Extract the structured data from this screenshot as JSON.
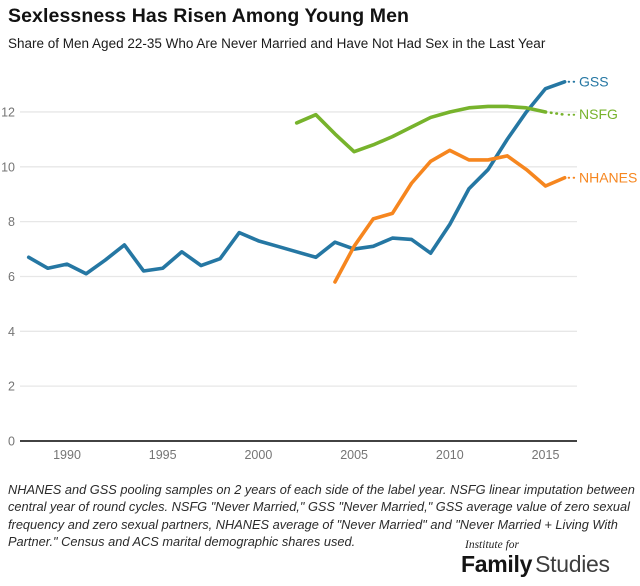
{
  "header": {
    "title": "Sexlessness Has Risen Among Young Men",
    "subtitle": "Share of Men Aged 22-35 Who Are Never Married and Have Not Had Sex in the Last Year"
  },
  "footnote": "NHANES and GSS pooling samples on 2 years of each side of the label year. NSFG linear imputation between central year of round cycles. NSFG \"Never Married,\" GSS \"Never Married,\" GSS average value of zero sexual frequency and zero sexual partners, NHANES average of \"Never Married\" and \"Never Married + Living With Partner.\" Census and ACS marital demographic shares used.",
  "logo": {
    "prefix": "Institute for",
    "name_bold": "Family",
    "name_light": "Studies"
  },
  "chart_data": {
    "type": "line",
    "title": "Sexlessness Has Risen Among Young Men",
    "subtitle": "Share of Men Aged 22-35 Who Are Never Married and Have Not Had Sex in the Last Year",
    "xlabel": "",
    "ylabel": "",
    "grid": true,
    "legend_position": "line-end-labels",
    "x_axis": {
      "ticks": [
        1990,
        1995,
        2000,
        2005,
        2010,
        2015
      ],
      "range": [
        1987.6,
        2016.6
      ]
    },
    "y_axis": {
      "ticks": [
        0,
        2,
        4,
        6,
        8,
        10,
        12
      ],
      "range": [
        0,
        13.9
      ]
    },
    "series": [
      {
        "name": "GSS",
        "color": "#2577a3",
        "years": [
          1988,
          1989,
          1990,
          1991,
          1992,
          1993,
          1994,
          1995,
          1996,
          1997,
          1998,
          1999,
          2000,
          2001,
          2002,
          2003,
          2004,
          2005,
          2006,
          2007,
          2008,
          2009,
          2010,
          2011,
          2012,
          2013,
          2014,
          2015,
          2016
        ],
        "values": [
          6.7,
          6.3,
          6.45,
          6.1,
          6.6,
          7.15,
          6.2,
          6.3,
          6.9,
          6.4,
          6.65,
          7.6,
          7.3,
          7.1,
          6.9,
          6.7,
          7.25,
          7.0,
          7.1,
          7.4,
          7.35,
          6.85,
          7.9,
          9.2,
          9.9,
          11.0,
          12.0,
          12.85,
          13.1
        ]
      },
      {
        "name": "NSFG",
        "color": "#77b32c",
        "years": [
          2002,
          2003,
          2004,
          2005,
          2006,
          2007,
          2008,
          2009,
          2010,
          2011,
          2012,
          2013,
          2014,
          2015,
          2016
        ],
        "values": [
          11.6,
          11.9,
          11.2,
          10.55,
          10.8,
          11.1,
          11.45,
          11.8,
          12.0,
          12.15,
          12.2,
          12.2,
          12.15,
          12.0,
          11.9
        ],
        "dotted_from_year": 2015
      },
      {
        "name": "NHANES",
        "color": "#f6861f",
        "years": [
          2004,
          2005,
          2006,
          2007,
          2008,
          2009,
          2010,
          2011,
          2012,
          2013,
          2014,
          2015,
          2016
        ],
        "values": [
          5.8,
          7.1,
          8.1,
          8.3,
          9.4,
          10.2,
          10.6,
          10.25,
          10.25,
          10.4,
          9.9,
          9.3,
          9.6
        ]
      }
    ]
  }
}
